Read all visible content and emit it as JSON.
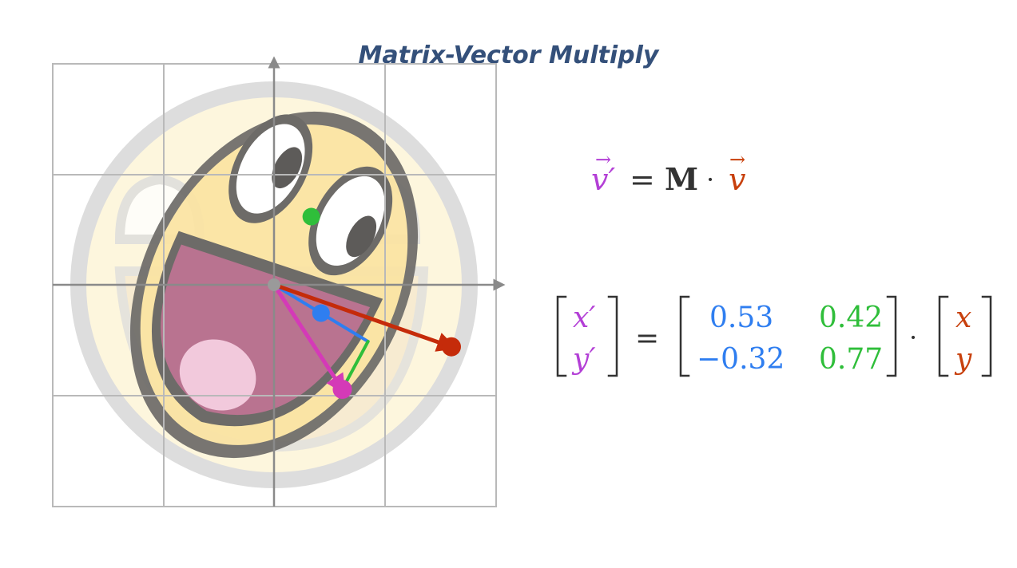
{
  "title": "Matrix-Vector Multiply",
  "colors": {
    "purple": "#b33fd6",
    "blue": "#2f7ef0",
    "green": "#2fbe3a",
    "orange": "#c8400c",
    "red": "#c52b0a",
    "magenta": "#d43ab7",
    "title": "#34507a",
    "grid": "#b9b9b9",
    "axis": "#8a8a8a"
  },
  "equation_top": {
    "lhs": "v′",
    "equals": "=",
    "matrix_symbol": "M",
    "dot": "·",
    "rhs": "v"
  },
  "equation_matrix": {
    "lhs": [
      "x′",
      "y′"
    ],
    "equals": "=",
    "matrix": [
      [
        "0.53",
        "0.42"
      ],
      [
        "−0.32",
        "0.77"
      ]
    ],
    "dot": "·",
    "rhs": [
      "x",
      "y"
    ]
  },
  "vectors": {
    "original": [
      2.0,
      -0.7
    ],
    "transformed": [
      0.77,
      -1.18
    ],
    "basis_i": [
      0.53,
      -0.32
    ],
    "basis_j": [
      0.42,
      0.77
    ]
  },
  "icons": [
    "awesome-smiley-face-icon"
  ]
}
